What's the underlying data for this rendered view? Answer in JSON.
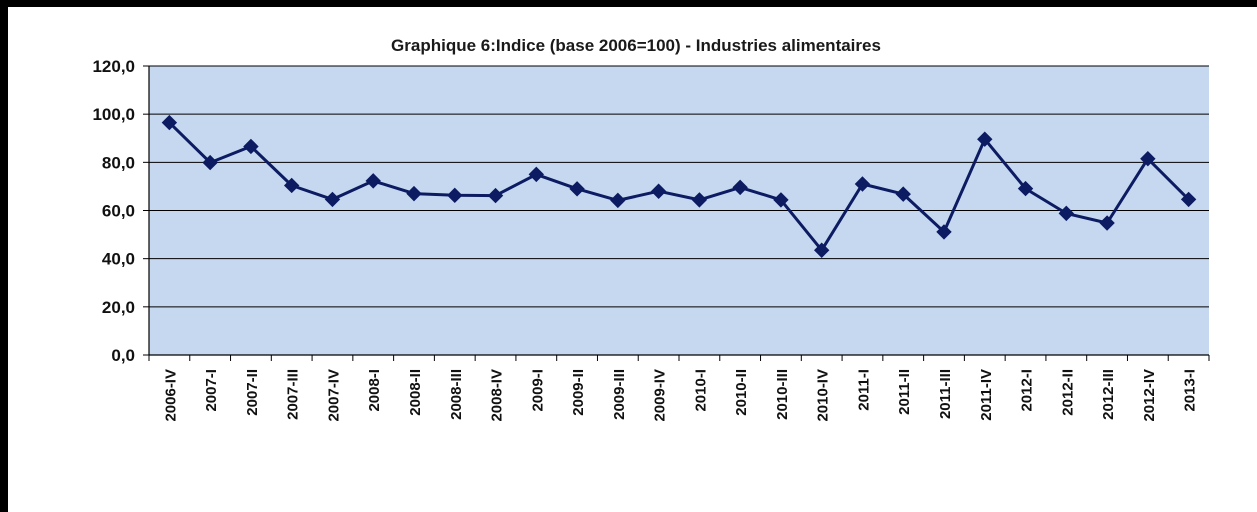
{
  "chart_data": {
    "type": "line",
    "title": "Graphique 6:Indice (base 2006=100) - Industries alimentaires",
    "xlabel": "",
    "ylabel": "",
    "categories": [
      "2006-IV",
      "2007-I",
      "2007-II",
      "2007-III",
      "2007-IV",
      "2008-I",
      "2008-II",
      "2008-III",
      "2008-IV",
      "2009-I",
      "2009-II",
      "2009-III",
      "2009-IV",
      "2010-I",
      "2010-II",
      "2010-III",
      "2010-IV",
      "2011-I",
      "2011-II",
      "2011-III",
      "2011-IV",
      "2012-I",
      "2012-II",
      "2012-III",
      "2012-IV",
      "2013-I"
    ],
    "series": [
      {
        "values": [
          96.5,
          79.9,
          86.6,
          70.4,
          64.6,
          72.3,
          67.0,
          66.3,
          66.2,
          75.0,
          69.0,
          64.2,
          68.0,
          64.4,
          69.6,
          64.4,
          43.5,
          71.0,
          66.8,
          51.1,
          89.6,
          69.1,
          58.8,
          54.8,
          81.5,
          64.6
        ]
      }
    ],
    "ylim": [
      0,
      120
    ],
    "yticks": [
      "0,0",
      "20,0",
      "40,0",
      "60,0",
      "80,0",
      "100,0",
      "120,0"
    ],
    "ytick_values": [
      0,
      20,
      40,
      60,
      80,
      100,
      120
    ],
    "grid": true,
    "legend": "none",
    "colors": {
      "plot_background": "#c5d8ef",
      "line": "#0d1b63",
      "marker": "#0d1b63",
      "gridline": "#000000"
    }
  }
}
